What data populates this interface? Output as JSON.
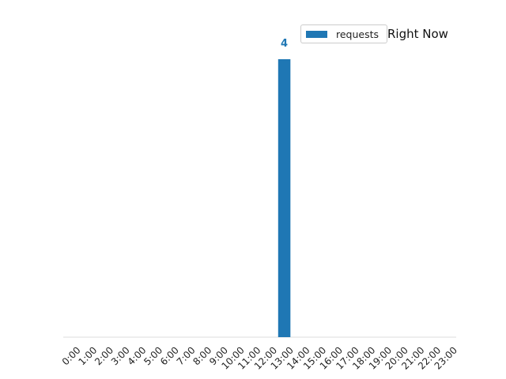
{
  "chart_data": {
    "type": "bar",
    "title": "Right Now",
    "xlabel": "",
    "ylabel": "",
    "categories": [
      "0:00",
      "1:00",
      "2:00",
      "3:00",
      "4:00",
      "5:00",
      "6:00",
      "7:00",
      "8:00",
      "9:00",
      "10:00",
      "11:00",
      "12:00",
      "13:00",
      "14:00",
      "15:00",
      "16:00",
      "17:00",
      "18:00",
      "19:00",
      "20:00",
      "21:00",
      "22:00",
      "23:00"
    ],
    "series": [
      {
        "name": "requests",
        "values": [
          0,
          0,
          0,
          0,
          0,
          0,
          0,
          0,
          0,
          0,
          0,
          0,
          0,
          4,
          0,
          0,
          0,
          0,
          0,
          0,
          0,
          0,
          0,
          0
        ]
      }
    ],
    "data_labels": [
      {
        "category": "13:00",
        "text": "4"
      }
    ],
    "ylim": [
      0,
      4
    ],
    "grid": false,
    "legend": "top-right",
    "colors": {
      "series": "#1f77b4",
      "axis": "#dddddd",
      "label": "#1f77b4"
    }
  }
}
